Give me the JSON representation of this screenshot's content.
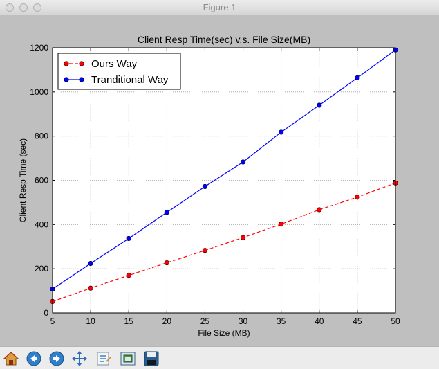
{
  "window": {
    "title": "Figure 1"
  },
  "toolbar": {
    "icons": [
      "home-icon",
      "back-icon",
      "forward-icon",
      "pan-icon",
      "configure-subplots-icon",
      "zoom-rect-icon",
      "save-icon"
    ]
  },
  "chart_data": {
    "type": "line",
    "title": "Client Resp Time(sec) v.s. File Size(MB)",
    "xlabel": "File Size (MB)",
    "ylabel": "Client Resp Time (sec)",
    "x": [
      5,
      10,
      15,
      20,
      25,
      30,
      35,
      40,
      45,
      50
    ],
    "xlim": [
      5,
      50
    ],
    "ylim": [
      0,
      1200
    ],
    "xticks": [
      5,
      10,
      15,
      20,
      25,
      30,
      35,
      40,
      45,
      50
    ],
    "yticks": [
      0,
      200,
      400,
      600,
      800,
      1000,
      1200
    ],
    "grid": true,
    "legend_position": "top-left",
    "series": [
      {
        "name": "Ours Way",
        "color": "#ff0000",
        "style": "dashed",
        "marker": "circle",
        "values": [
          52,
          112,
          170,
          227,
          283,
          341,
          402,
          467,
          524,
          588
        ]
      },
      {
        "name": "Tranditional Way",
        "color": "#0000ff",
        "style": "solid",
        "marker": "circle",
        "values": [
          108,
          224,
          337,
          455,
          572,
          683,
          818,
          940,
          1064,
          1190
        ]
      }
    ]
  }
}
